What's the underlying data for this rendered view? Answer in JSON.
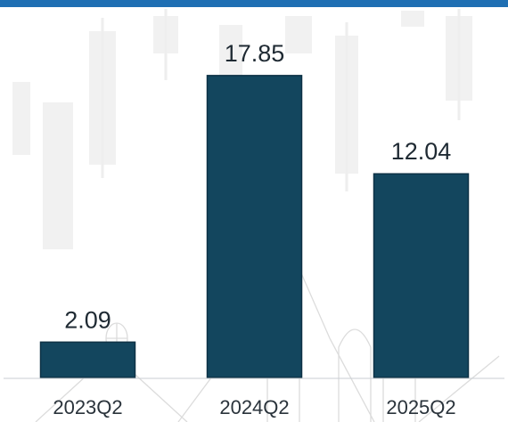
{
  "chart_data": {
    "type": "bar",
    "categories": [
      "2023Q2",
      "2024Q2",
      "2025Q2"
    ],
    "values": [
      2.09,
      17.85,
      12.04
    ],
    "value_labels": [
      "2.09",
      "17.85",
      "12.04"
    ],
    "title": "",
    "xlabel": "",
    "ylabel": "",
    "ylim": [
      0,
      20
    ],
    "grid": false,
    "legend": "none",
    "colors": {
      "bar": "#13465e",
      "bar_stroke": "#0d3145",
      "top_band": "#1f6fb3",
      "baseline": "#c9ced3"
    }
  }
}
